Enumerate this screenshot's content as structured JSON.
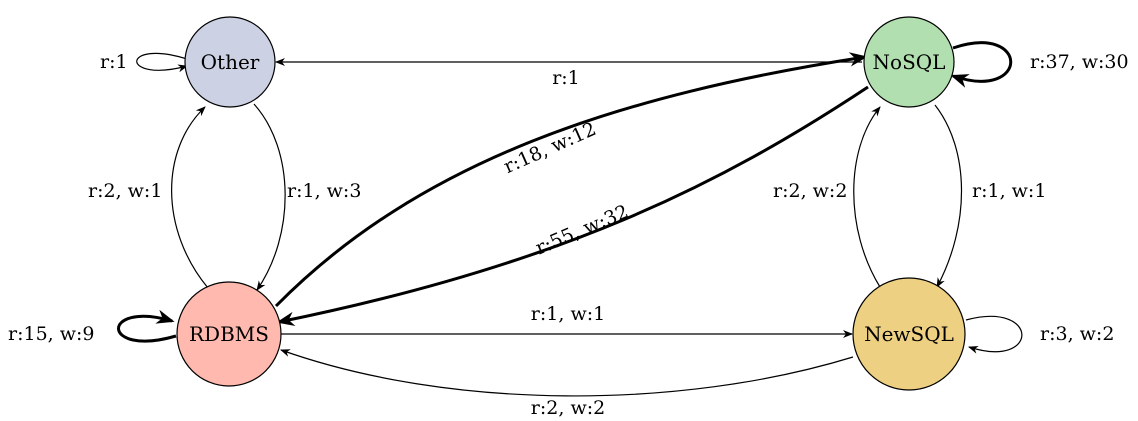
{
  "nodes": {
    "other": {
      "label": "Other",
      "color": "#CDD1E4"
    },
    "nosql": {
      "label": "NoSQL",
      "color": "#B2DFB0"
    },
    "rdbms": {
      "label": "RDBMS",
      "color": "#FFB9AE"
    },
    "newsql": {
      "label": "NewSQL",
      "color": "#EED083"
    }
  },
  "edges": {
    "other_self": {
      "label": "r:1"
    },
    "nosql_to_other": {
      "label": "r:1"
    },
    "nosql_self": {
      "label": "r:37, w:30"
    },
    "rdbms_to_other": {
      "label": "r:2, w:1"
    },
    "other_to_rdbms": {
      "label": "r:1, w:3"
    },
    "rdbms_to_nosql": {
      "label": "r:18, w:12"
    },
    "nosql_to_rdbms": {
      "label": "r:55, w:32"
    },
    "newsql_to_nosql": {
      "label": "r:2, w:2"
    },
    "nosql_to_newsql": {
      "label": "r:1, w:1"
    },
    "rdbms_self": {
      "label": "r:15, w:9"
    },
    "rdbms_to_newsql": {
      "label": "r:1, w:1"
    },
    "newsql_self": {
      "label": "r:3, w:2"
    },
    "newsql_to_rdbms": {
      "label": "r:2, w:2"
    }
  }
}
